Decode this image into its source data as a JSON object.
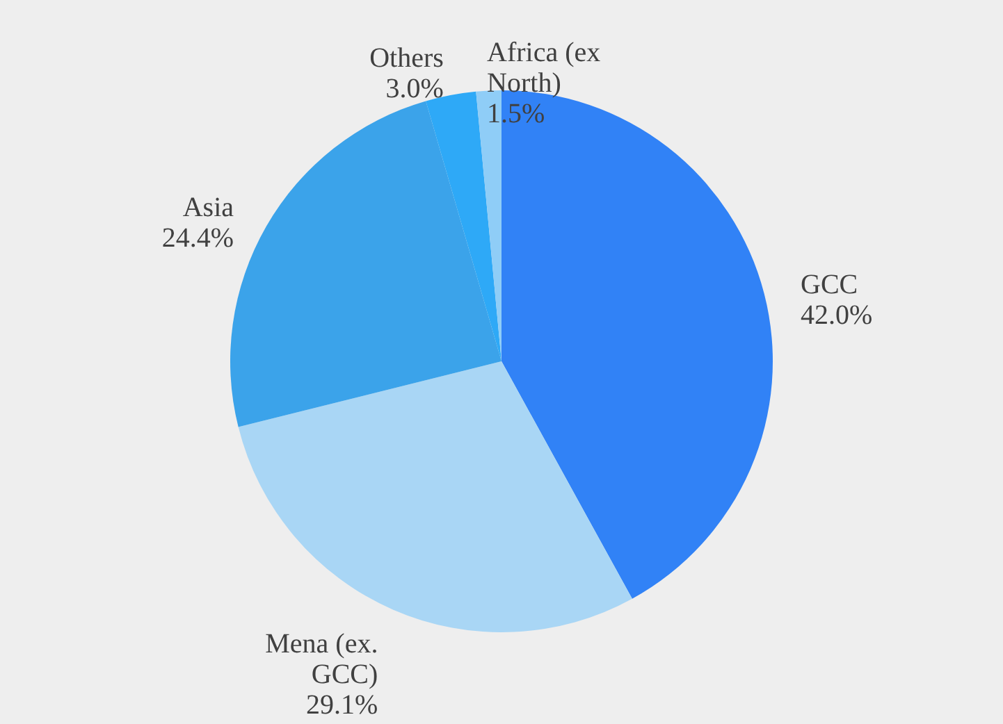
{
  "chart_data": {
    "type": "pie",
    "categories": [
      "GCC",
      "Mena (ex. GCC)",
      "Asia",
      "Others",
      "Africa (ex North)"
    ],
    "values": [
      42.0,
      29.1,
      24.4,
      3.0,
      1.5
    ],
    "value_labels": [
      "42.0%",
      "29.1%",
      "24.4%",
      "3.0%",
      "1.5%"
    ],
    "colors": [
      "#3182f6",
      "#a9d6f5",
      "#3ba3ea",
      "#2ea9f7",
      "#8fcdf7"
    ],
    "legend": false
  }
}
